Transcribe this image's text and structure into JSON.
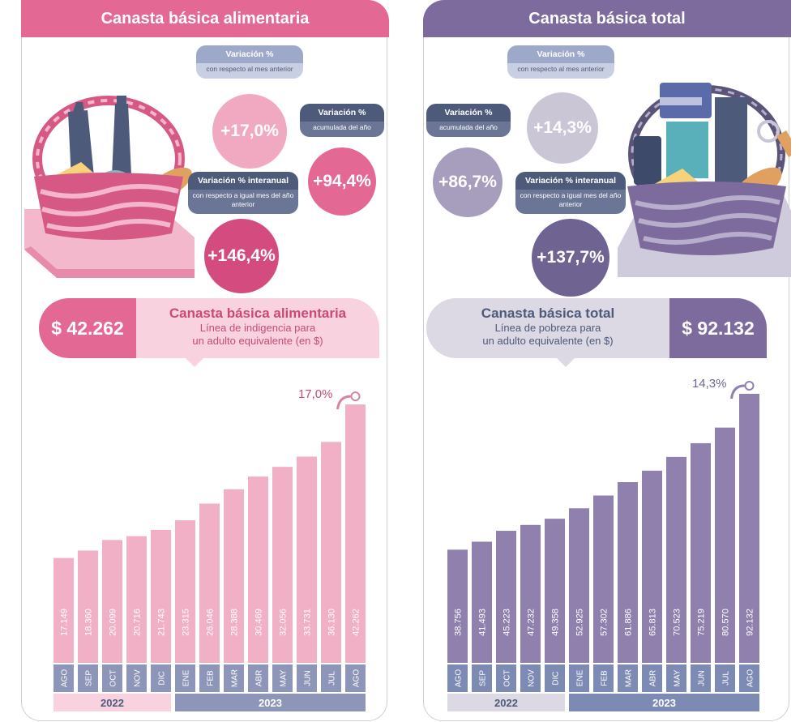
{
  "left": {
    "tab_title": "Canasta básica alimentaria",
    "var_mensual": {
      "title": "Variación %",
      "subtitle": "con respecto al mes anterior",
      "value": "+17,0%"
    },
    "var_acumulada": {
      "title": "Variación %",
      "subtitle": "acumulada del año",
      "value": "+94,4%"
    },
    "var_interanual": {
      "title": "Variación % interanual",
      "subtitle": "con respecto a igual mes del año anterior",
      "value": "+146,4%"
    },
    "price": "$ 42.262",
    "price_title": "Canasta básica alimentaria",
    "price_desc_1": "Línea de indigencia para",
    "price_desc_2": "un adulto equivalente (en $)"
  },
  "right": {
    "tab_title": "Canasta básica total",
    "var_mensual": {
      "title": "Variación %",
      "subtitle": "con respecto al mes anterior",
      "value": "+14,3%"
    },
    "var_acumulada": {
      "title": "Variación %",
      "subtitle": "acumulada del año",
      "value": "+86,7%"
    },
    "var_interanual": {
      "title": "Variación % interanual",
      "subtitle": "con respecto a igual mes del año anterior",
      "value": "+137,7%"
    },
    "price": "$ 92.132",
    "price_title": "Canasta básica total",
    "price_desc_1": "Línea de pobreza para",
    "price_desc_2": "un adulto equivalente (en $)"
  },
  "colors": {
    "pink_accent": "#e36894",
    "pink_bar": "#f2b0c6",
    "pink_light": "#f8d3df",
    "purple_accent": "#7c6b9c",
    "purple_bar": "#8f80ad",
    "purple_light": "#dcd8e4",
    "navy_pill": "#4d5a7a"
  },
  "chart_data": [
    {
      "type": "bar",
      "categories": [
        "AGO",
        "SEP",
        "OCT",
        "NOV",
        "DIC",
        "ENE",
        "FEB",
        "MAR",
        "ABR",
        "MAY",
        "JUN",
        "JUL",
        "AGO"
      ],
      "values": [
        17149,
        18360,
        20099,
        20716,
        21743,
        23315,
        26046,
        28388,
        30469,
        32056,
        33731,
        36130,
        42262
      ],
      "value_labels": [
        "17.149",
        "18.360",
        "20.099",
        "20.716",
        "21.743",
        "23.315",
        "26.046",
        "28.388",
        "30.469",
        "32.056",
        "33.731",
        "36.130",
        "42.262"
      ],
      "year_groups": [
        {
          "label": "2022",
          "count": 5
        },
        {
          "label": "2023",
          "count": 8
        }
      ],
      "annotation": "17,0%",
      "ylim": [
        0,
        44000
      ]
    },
    {
      "type": "bar",
      "categories": [
        "AGO",
        "SEP",
        "OCT",
        "NOV",
        "DIC",
        "ENE",
        "FEB",
        "MAR",
        "ABR",
        "MAY",
        "JUN",
        "JUL",
        "AGO"
      ],
      "values": [
        38756,
        41493,
        45223,
        47232,
        49358,
        52925,
        57302,
        61886,
        65813,
        70523,
        75219,
        80570,
        92132
      ],
      "value_labels": [
        "38.756",
        "41.493",
        "45.223",
        "47.232",
        "49.358",
        "52.925",
        "57.302",
        "61.886",
        "65.813",
        "70.523",
        "75.219",
        "80.570",
        "92.132"
      ],
      "year_groups": [
        {
          "label": "2022",
          "count": 5
        },
        {
          "label": "2023",
          "count": 8
        }
      ],
      "annotation": "14,3%",
      "ylim": [
        0,
        92132
      ]
    }
  ]
}
